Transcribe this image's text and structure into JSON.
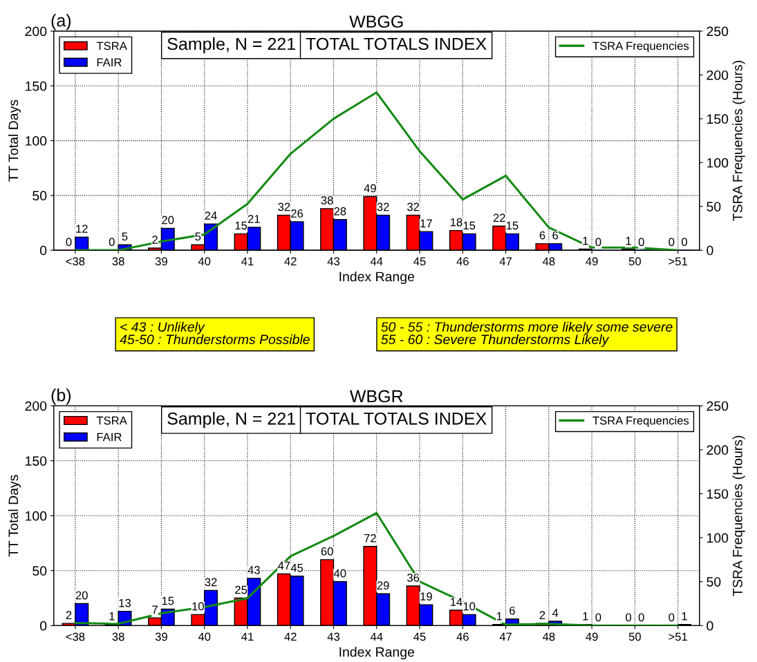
{
  "chart_data": [
    {
      "type": "bar",
      "title": "WBGG",
      "xlabel": "Index Range",
      "ylabel": "TT Total Days",
      "y2label": "TSRA Frequencies (Hours)",
      "categories": [
        "<38",
        "38",
        "39",
        "40",
        "41",
        "42",
        "43",
        "44",
        "45",
        "46",
        "47",
        "48",
        "49",
        "50",
        ">51"
      ],
      "series": [
        {
          "name": "TSRA",
          "color": "#ff0000",
          "values": [
            0,
            0,
            2,
            5,
            15,
            32,
            38,
            49,
            32,
            18,
            22,
            6,
            1,
            1,
            0
          ],
          "value_labels": [
            "0",
            "0",
            "2",
            "5",
            "15",
            "32",
            "38",
            "49",
            "32",
            "18",
            "22",
            "6",
            "1",
            "1",
            "0"
          ]
        },
        {
          "name": "FAIR",
          "color": "#0000ff",
          "values": [
            12,
            5,
            20,
            24,
            21,
            26,
            28,
            32,
            17,
            15,
            15,
            6,
            0,
            0,
            0
          ],
          "value_labels": [
            "12",
            "5",
            "20",
            "24",
            "21",
            "26",
            "28",
            "32",
            "17",
            "15",
            "15",
            "6",
            "0",
            "0",
            "0"
          ]
        },
        {
          "name": "TSRA Frequencies",
          "type": "line",
          "axis": "y2",
          "color": "#138a13",
          "values": [
            0,
            0,
            10,
            18,
            53,
            110,
            150,
            180,
            113,
            58,
            85,
            26,
            3,
            3,
            0
          ]
        }
      ],
      "ylim": [
        0,
        200
      ],
      "yticks": [
        0,
        50,
        100,
        150,
        200
      ],
      "y2lim": [
        0,
        250
      ],
      "y2ticks": [
        0,
        50,
        100,
        150,
        200,
        250
      ],
      "grid": true,
      "legend": "top left",
      "annotations": [
        "(a)",
        "Sample, N = 221",
        "TOTAL TOTALS INDEX",
        "< 43 : Unlikely\n45-50 : Thunderstorms Possible",
        "50 - 55 : Thunderstorms more likely some severe\n55 - 60 : Severe Thunderstorms Likely"
      ]
    },
    {
      "type": "bar",
      "title": "WBGR",
      "xlabel": "Index Range",
      "ylabel": "TT Total Days",
      "y2label": "TSRA Frequencies (Hours)",
      "categories": [
        "<38",
        "38",
        "39",
        "40",
        "41",
        "42",
        "43",
        "44",
        "45",
        "46",
        "47",
        "48",
        "49",
        "50",
        ">51"
      ],
      "series": [
        {
          "name": "TSRA",
          "color": "#ff0000",
          "values": [
            2,
            1,
            7,
            10,
            25,
            47,
            60,
            72,
            36,
            14,
            1,
            2,
            1,
            0,
            0
          ],
          "value_labels": [
            "2",
            "1",
            "7",
            "10",
            "25",
            "47",
            "60",
            "72",
            "36",
            "14",
            "1",
            "2",
            "1",
            "0",
            "0"
          ]
        },
        {
          "name": "FAIR",
          "color": "#0000ff",
          "values": [
            20,
            13,
            15,
            32,
            43,
            45,
            40,
            29,
            19,
            10,
            6,
            4,
            0,
            0,
            1
          ],
          "value_labels": [
            "20",
            "13",
            "15",
            "32",
            "43",
            "45",
            "40",
            "29",
            "19",
            "10",
            "6",
            "4",
            "0",
            "0",
            "1"
          ]
        },
        {
          "name": "TSRA Frequencies",
          "type": "line",
          "axis": "y2",
          "color": "#138a13",
          "values": [
            3,
            2,
            14,
            21,
            31,
            79,
            102,
            128,
            50,
            27,
            1,
            2,
            0,
            0,
            0
          ]
        }
      ],
      "ylim": [
        0,
        200
      ],
      "yticks": [
        0,
        50,
        100,
        150,
        200
      ],
      "y2lim": [
        0,
        250
      ],
      "y2ticks": [
        0,
        50,
        100,
        150,
        200,
        250
      ],
      "grid": true,
      "legend": "top left",
      "annotations": [
        "(b)",
        "Sample, N = 221",
        "TOTAL TOTALS INDEX"
      ]
    }
  ]
}
